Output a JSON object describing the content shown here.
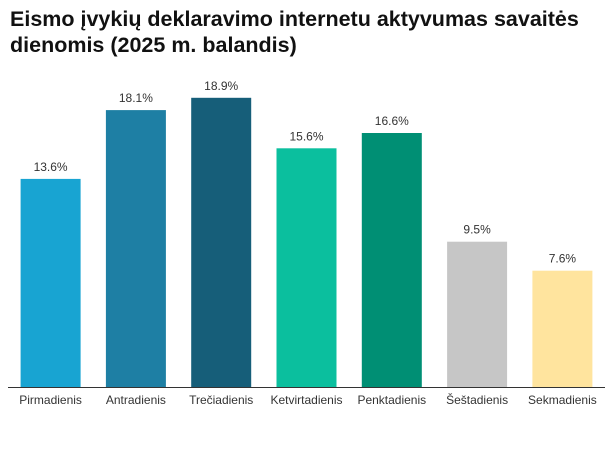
{
  "chart_data": {
    "type": "bar",
    "title": "Eismo įvykių deklaravimo internetu aktyvumas savaitės dienomis (2025 m. balandis)",
    "categories": [
      "Pirmadienis",
      "Antradienis",
      "Trečiadienis",
      "Ketvirtadienis",
      "Penktadienis",
      "Šeštadienis",
      "Sekmadienis"
    ],
    "values": [
      13.6,
      18.1,
      18.9,
      15.6,
      16.6,
      9.5,
      7.6
    ],
    "value_labels": [
      "13.6%",
      "18.1%",
      "18.9%",
      "15.6%",
      "16.6%",
      "9.5%",
      "7.6%"
    ],
    "colors": [
      "#18A4D2",
      "#1E7FA4",
      "#165E79",
      "#0BBF9E",
      "#008F74",
      "#C6C6C6",
      "#FFE49E"
    ],
    "xlabel": "",
    "ylabel": "",
    "ylim": [
      0,
      20
    ],
    "grid": false,
    "legend": "none"
  }
}
